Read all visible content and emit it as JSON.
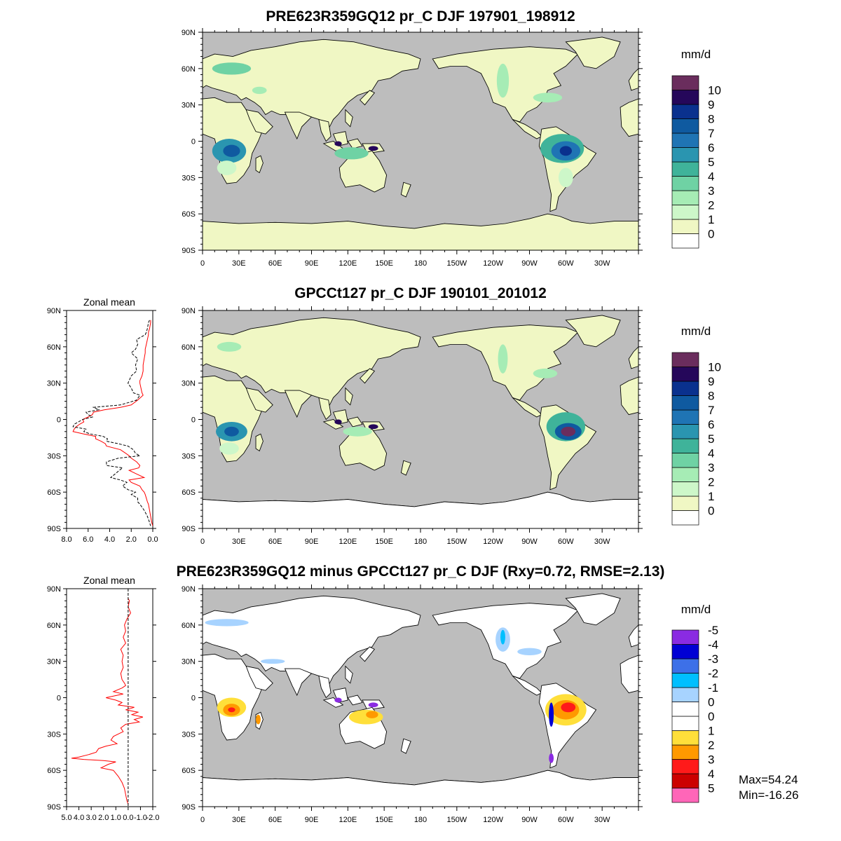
{
  "colors": {
    "ocean": "#bdbdbd",
    "pr_levels": [
      "#ffffff",
      "#f0f7c4",
      "#cdf7c9",
      "#a6ecb5",
      "#6fd2a4",
      "#3fb39a",
      "#2a95b0",
      "#1f74b4",
      "#0f5aa0",
      "#0a318e",
      "#25075a",
      "#6a2d5d"
    ],
    "diff_levels": [
      "#ff66b8",
      "#cc0000",
      "#ff1a1a",
      "#ff9900",
      "#ffdf3a",
      "#ffffff",
      "#ffffff",
      "#a7d3ff",
      "#00bfff",
      "#3d70e8",
      "#0000d4",
      "#8a2be2"
    ],
    "zonal_model": "#000000",
    "zonal_obs": "#ff0000"
  },
  "panels": {
    "top": {
      "title": "PRE623R359GQ12 pr_C DJF 197901_198912"
    },
    "middle": {
      "title": "GPCCt127 pr_C DJF 190101_201012",
      "zonal_title": "Zonal mean"
    },
    "bottom": {
      "title": "PRE623R359GQ12 minus GPCCt127 pr_C DJF (Rxy=0.72, RMSE=2.13)",
      "zonal_title": "Zonal mean"
    }
  },
  "axes": {
    "lat_labels": [
      "90N",
      "60N",
      "30N",
      "0",
      "30S",
      "60S",
      "90S"
    ],
    "lon_labels": [
      "0",
      "30E",
      "60E",
      "90E",
      "120E",
      "150E",
      "180",
      "150W",
      "120W",
      "90W",
      "60W",
      "30W"
    ],
    "zonal_mid_ticks": [
      "8.0",
      "6.0",
      "4.0",
      "2.0",
      "0.0"
    ],
    "zonal_mid_range": [
      8.0,
      0.0
    ],
    "zonal_bot_ticks": [
      "5.0",
      "4.0",
      "3.0",
      "2.0",
      "1.0",
      "0.0",
      "-1.0",
      "-2.0"
    ],
    "zonal_bot_range": [
      5.0,
      -2.0
    ]
  },
  "colorbar": {
    "unit": "mm/d",
    "pr_labels": [
      "0",
      "1",
      "2",
      "3",
      "4",
      "5",
      "6",
      "7",
      "8",
      "9",
      "10"
    ],
    "diff_labels": [
      "-5",
      "-4",
      "-3",
      "-2",
      "-1",
      "0",
      "0",
      "1",
      "2",
      "3",
      "4",
      "5"
    ]
  },
  "stats": {
    "max": "Max=54.24",
    "min": "Min=-16.26"
  },
  "chart_data": [
    {
      "type": "line",
      "title": "Zonal mean",
      "x_axis": "pr (mm/d), reversed 8.0 to 0.0",
      "y_axis": "latitude (deg)",
      "xlim": [
        8.0,
        0.0
      ],
      "ylim": [
        -90,
        90
      ],
      "series": [
        {
          "lat": [
            82,
            80,
            75,
            72,
            70,
            66,
            62,
            58,
            55,
            50,
            45,
            40,
            36,
            32,
            30,
            26,
            22,
            20,
            16,
            12,
            10,
            8,
            6,
            4,
            2,
            0,
            -2,
            -4,
            -6,
            -8,
            -10,
            -12,
            -14,
            -16,
            -18,
            -20,
            -22,
            -25,
            -28,
            -30,
            -32,
            -35,
            -38,
            -40,
            -42,
            -45,
            -48,
            -50,
            -52,
            -55,
            -58,
            -60,
            -62,
            -65,
            -68,
            -70,
            -75,
            -80,
            -85,
            -88
          ],
          "values": [
            0.2,
            0.2,
            0.3,
            0.4,
            0.4,
            0.5,
            0.6,
            0.7,
            0.7,
            0.8,
            0.9,
            0.9,
            1.0,
            1.2,
            1.2,
            1.1,
            1.0,
            0.9,
            1.4,
            2.0,
            3.0,
            4.5,
            5.5,
            5.6,
            6.0,
            6.5,
            6.4,
            6.8,
            7.1,
            7.3,
            7.4,
            6.4,
            5.3,
            5.3,
            4.8,
            4.4,
            4.3,
            3.0,
            2.5,
            2.2,
            2.0,
            1.5,
            1.2,
            1.3,
            2.2,
            1.5,
            0.8,
            2.2,
            2.0,
            1.2,
            1.0,
            0.8,
            0.7,
            0.6,
            0.5,
            0.4,
            0.3,
            0.2,
            0.1,
            0.0
          ]
        },
        {
          "lat": [
            82,
            80,
            75,
            72,
            70,
            66,
            62,
            58,
            55,
            50,
            45,
            40,
            36,
            32,
            30,
            26,
            22,
            20,
            16,
            12,
            10,
            8,
            6,
            4,
            2,
            0,
            -2,
            -4,
            -6,
            -8,
            -10,
            -12,
            -14,
            -16,
            -18,
            -20,
            -22,
            -25,
            -28,
            -30,
            -32,
            -35,
            -38,
            -40,
            -42,
            -45,
            -48,
            -50,
            -52,
            -55,
            -58,
            -60,
            -62,
            -65,
            -68,
            -70,
            -75,
            -80,
            -85,
            -88
          ],
          "values": [
            0.3,
            0.4,
            0.5,
            0.6,
            0.7,
            1.5,
            1.4,
            1.6,
            2.0,
            1.4,
            1.6,
            1.5,
            2.0,
            2.2,
            2.3,
            2.0,
            1.8,
            1.2,
            1.5,
            3.0,
            5.5,
            5.0,
            6.2,
            6.0,
            5.6,
            6.5,
            6.9,
            7.3,
            7.4,
            6.2,
            6.4,
            5.8,
            4.6,
            4.2,
            4.3,
            3.2,
            2.3,
            1.8,
            1.6,
            1.2,
            3.2,
            4.3,
            4.3,
            2.8,
            3.1,
            3.5,
            3.9,
            3.0,
            2.4,
            2.8,
            2.3,
            1.6,
            2.0,
            1.4,
            1.4,
            1.2,
            0.8,
            0.5,
            0.3,
            0.2
          ]
        }
      ]
    },
    {
      "type": "line",
      "title": "Zonal mean",
      "x_axis": "pr difference (mm/d), reversed 5.0 to -2.0",
      "y_axis": "latitude (deg)",
      "xlim": [
        5.0,
        -2.0
      ],
      "ylim": [
        -90,
        90
      ],
      "series": [
        {
          "lat": [
            82,
            80,
            75,
            70,
            65,
            60,
            55,
            50,
            45,
            40,
            35,
            30,
            25,
            20,
            15,
            12,
            10,
            8,
            5,
            3,
            0,
            -2,
            -4,
            -6,
            -8,
            -10,
            -12,
            -14,
            -16,
            -18,
            -20,
            -22,
            -25,
            -28,
            -30,
            -32,
            -35,
            -38,
            -40,
            -42,
            -45,
            -47,
            -49,
            -50,
            -51,
            -52,
            -53,
            -55,
            -58,
            -60,
            -65,
            -70,
            -75,
            -80,
            -85,
            -88
          ],
          "values": [
            0.0,
            -0.1,
            0.0,
            -0.2,
            0.1,
            0.3,
            0.2,
            0.4,
            0.2,
            0.6,
            0.4,
            0.5,
            0.4,
            0.6,
            0.5,
            0.3,
            0.2,
            0.5,
            1.2,
            0.4,
            1.8,
            1.0,
            0.5,
            0.8,
            -0.5,
            0.2,
            -0.8,
            -0.3,
            -1.2,
            -0.5,
            -0.9,
            0.2,
            0.6,
            0.4,
            0.8,
            1.2,
            1.4,
            0.9,
            1.8,
            2.4,
            2.6,
            3.2,
            4.0,
            4.6,
            3.6,
            2.0,
            1.0,
            1.6,
            2.2,
            1.2,
            0.8,
            0.5,
            0.3,
            0.2,
            0.1,
            0.0
          ]
        }
      ]
    }
  ]
}
